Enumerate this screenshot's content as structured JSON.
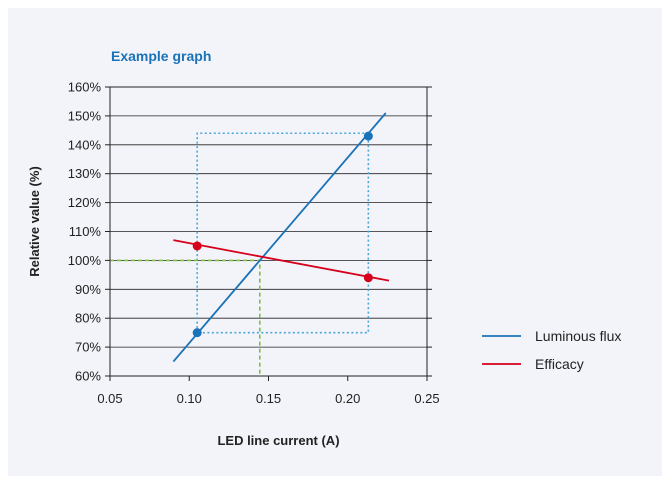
{
  "chart_data": {
    "type": "line",
    "title": "Example graph",
    "xlabel": "LED line current (A)",
    "ylabel": "Relative value (%)",
    "xlim": [
      0.05,
      0.25
    ],
    "ylim": [
      60,
      160
    ],
    "xticks": [
      "0.05",
      "0.10",
      "0.15",
      "0.20",
      "0.25"
    ],
    "xtick_values": [
      0.05,
      0.1,
      0.15,
      0.2,
      0.25
    ],
    "yticks": [
      "60%",
      "70%",
      "80%",
      "90%",
      "100%",
      "110%",
      "120%",
      "130%",
      "140%",
      "150%",
      "160%"
    ],
    "ytick_values": [
      60,
      70,
      80,
      90,
      100,
      110,
      120,
      130,
      140,
      150,
      160
    ],
    "grid": "horizontal",
    "legend_position": "right",
    "series": [
      {
        "name": "Luminous flux",
        "color": "#1a72b8",
        "line": [
          [
            0.09,
            65
          ],
          [
            0.224,
            151
          ]
        ],
        "points": [
          [
            0.105,
            75
          ],
          [
            0.213,
            143
          ]
        ]
      },
      {
        "name": "Efficacy",
        "color": "#d6001c",
        "line": [
          [
            0.09,
            107
          ],
          [
            0.226,
            93
          ]
        ],
        "points": [
          [
            0.105,
            105
          ],
          [
            0.213,
            94
          ]
        ]
      }
    ],
    "reference_lines": [
      {
        "color": "#4aa6d9",
        "style": "dotted",
        "path": [
          [
            0.105,
            75
          ],
          [
            0.105,
            144
          ],
          [
            0.213,
            144
          ],
          [
            0.213,
            75
          ],
          [
            0.105,
            75
          ]
        ]
      },
      {
        "color": "#7fbf3f",
        "style": "dashed",
        "path": [
          [
            0.05,
            100
          ],
          [
            0.1445,
            100
          ],
          [
            0.1445,
            60
          ]
        ]
      }
    ]
  }
}
